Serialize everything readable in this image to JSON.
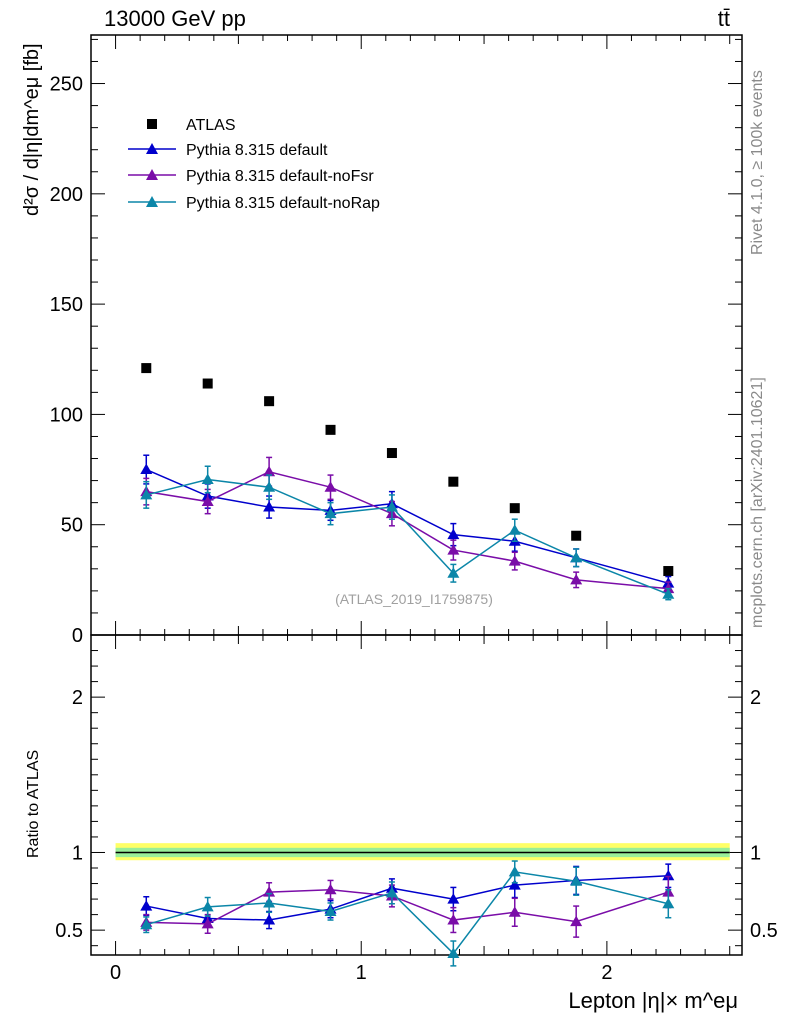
{
  "header": {
    "energy_label": "13000 GeV pp",
    "process_label": "tt̄",
    "analysis_id": "(ATLAS_2019_I1759875)",
    "side_rivet": "Rivet 4.1.0, ≥ 100k events",
    "side_mcplots": "mcplots.cern.ch [arXiv:2401.10621]"
  },
  "colors": {
    "atlas": "#000000",
    "default": "#0000cc",
    "noFsr": "#7a0da8",
    "noRap": "#0b86a8",
    "band_outer": "#ffff66",
    "band_inner": "#99ee99"
  },
  "chart_data": [
    {
      "type": "scatter",
      "panel": "main",
      "ylabel": "d²σ / d|η|dm^eμ [fb]",
      "xlim": [
        -0.1,
        2.55
      ],
      "ylim": [
        0,
        272
      ],
      "yticks": [
        0,
        50,
        100,
        150,
        200,
        250
      ],
      "ytick_labels": [
        "0",
        "50",
        "100",
        "150",
        "200",
        "250"
      ],
      "x": [
        0.125,
        0.375,
        0.625,
        0.875,
        1.125,
        1.375,
        1.625,
        1.875,
        2.25
      ],
      "legend": [
        "ATLAS",
        "Pythia 8.315 default",
        "Pythia 8.315 default-noFsr",
        "Pythia 8.315 default-noRap"
      ],
      "series": [
        {
          "name": "ATLAS",
          "key": "atlas",
          "marker": "square",
          "values": [
            121,
            114,
            106,
            93,
            82.5,
            69.5,
            57.5,
            45,
            29
          ]
        },
        {
          "name": "Pythia 8.315 default",
          "key": "default",
          "marker": "triangle",
          "values": [
            75,
            63,
            58,
            56.5,
            59.5,
            45.5,
            42.5,
            35,
            23.5
          ],
          "errors": [
            6.5,
            5.5,
            5,
            4.5,
            5.5,
            5,
            4.5,
            4,
            3
          ]
        },
        {
          "name": "Pythia 8.315 default-noFsr",
          "key": "noFsr",
          "marker": "triangle",
          "values": [
            65,
            60.5,
            74,
            67,
            55,
            38.5,
            33.5,
            25,
            21
          ],
          "errors": [
            6,
            5.5,
            6.5,
            5.5,
            5.5,
            4.5,
            4,
            3.5,
            3
          ]
        },
        {
          "name": "Pythia 8.315 default-noRap",
          "key": "noRap",
          "marker": "triangle",
          "values": [
            63.5,
            70.5,
            67,
            55,
            58,
            28,
            47.5,
            35,
            18.5
          ],
          "errors": [
            6,
            6,
            5.5,
            5,
            5.5,
            4,
            5,
            4,
            2.5
          ]
        }
      ]
    },
    {
      "type": "scatter",
      "panel": "ratio",
      "ylabel": "Ratio to ATLAS",
      "xlabel": "Lepton |η|× m^eμ",
      "xlim": [
        -0.1,
        2.55
      ],
      "ylim": [
        0.34,
        2.4
      ],
      "yticks": [
        0.5,
        1,
        2
      ],
      "ytick_labels": [
        "0.5",
        "1",
        "2"
      ],
      "xticks": [
        0,
        1,
        2
      ],
      "xtick_labels": [
        "0",
        "1",
        "2"
      ],
      "band": {
        "inner": [
          0.97,
          1.03
        ],
        "outer": [
          0.95,
          1.06
        ]
      },
      "x": [
        0.125,
        0.375,
        0.625,
        0.875,
        1.125,
        1.375,
        1.625,
        1.875,
        2.25
      ],
      "series": [
        {
          "name": "Pythia 8.315 default",
          "key": "default",
          "values": [
            0.655,
            0.575,
            0.565,
            0.635,
            0.77,
            0.7,
            0.79,
            0.82,
            0.85
          ],
          "errors": [
            0.06,
            0.055,
            0.055,
            0.055,
            0.06,
            0.075,
            0.08,
            0.09,
            0.075
          ]
        },
        {
          "name": "Pythia 8.315 default-noFsr",
          "key": "noFsr",
          "values": [
            0.55,
            0.54,
            0.745,
            0.76,
            0.72,
            0.565,
            0.615,
            0.555,
            0.745
          ],
          "errors": [
            0.05,
            0.06,
            0.06,
            0.06,
            0.07,
            0.08,
            0.09,
            0.1,
            0.1
          ]
        },
        {
          "name": "Pythia 8.315 default-noRap",
          "key": "noRap",
          "values": [
            0.535,
            0.65,
            0.675,
            0.62,
            0.74,
            0.35,
            0.875,
            0.815,
            0.67
          ],
          "errors": [
            0.05,
            0.06,
            0.06,
            0.055,
            0.07,
            0.08,
            0.07,
            0.09,
            0.09
          ]
        }
      ]
    }
  ]
}
